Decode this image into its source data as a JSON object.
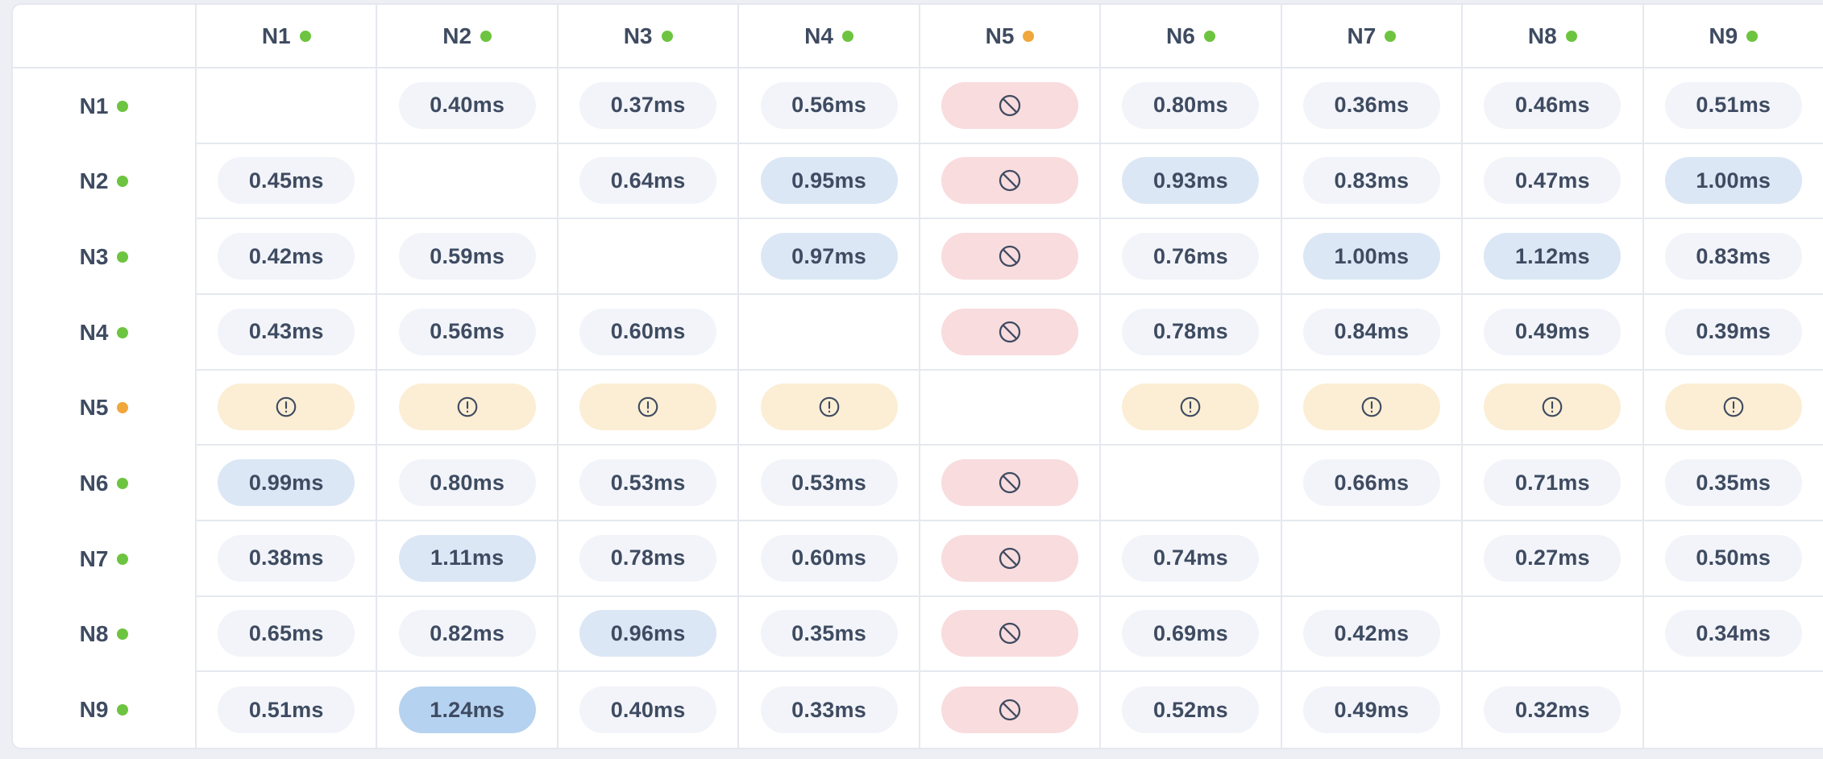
{
  "colors": {
    "page_background": "#edeff4",
    "card_background": "#ffffff",
    "grid_border": "#e5e8ef",
    "text": "#3e4b61",
    "pill_neutral": "#f2f4f9",
    "pill_elevated": "#dbe7f5",
    "pill_peak": "#b5d2f0",
    "pill_blocked": "#f9dcde",
    "pill_warning": "#fbeed4",
    "status_online": "#6dc440",
    "status_degraded": "#f0a73c"
  },
  "icons": {
    "blocked": "ban-icon",
    "warning": "alert-circle-icon",
    "node_status": "status-dot"
  },
  "matrix": {
    "unit": "ms",
    "columns": [
      {
        "label": "N1",
        "status": "online"
      },
      {
        "label": "N2",
        "status": "online"
      },
      {
        "label": "N3",
        "status": "online"
      },
      {
        "label": "N4",
        "status": "online"
      },
      {
        "label": "N5",
        "status": "degraded"
      },
      {
        "label": "N6",
        "status": "online"
      },
      {
        "label": "N7",
        "status": "online"
      },
      {
        "label": "N8",
        "status": "online"
      },
      {
        "label": "N9",
        "status": "online"
      }
    ],
    "rows": [
      {
        "label": "N1",
        "status": "online",
        "cells": [
          {
            "type": "self"
          },
          {
            "type": "value",
            "text": "0.40ms",
            "value": 0.4,
            "level": "normal"
          },
          {
            "type": "value",
            "text": "0.37ms",
            "value": 0.37,
            "level": "normal"
          },
          {
            "type": "value",
            "text": "0.56ms",
            "value": 0.56,
            "level": "normal"
          },
          {
            "type": "blocked"
          },
          {
            "type": "value",
            "text": "0.80ms",
            "value": 0.8,
            "level": "normal"
          },
          {
            "type": "value",
            "text": "0.36ms",
            "value": 0.36,
            "level": "normal"
          },
          {
            "type": "value",
            "text": "0.46ms",
            "value": 0.46,
            "level": "normal"
          },
          {
            "type": "value",
            "text": "0.51ms",
            "value": 0.51,
            "level": "normal"
          }
        ]
      },
      {
        "label": "N2",
        "status": "online",
        "cells": [
          {
            "type": "value",
            "text": "0.45ms",
            "value": 0.45,
            "level": "normal"
          },
          {
            "type": "self"
          },
          {
            "type": "value",
            "text": "0.64ms",
            "value": 0.64,
            "level": "normal"
          },
          {
            "type": "value",
            "text": "0.95ms",
            "value": 0.95,
            "level": "high"
          },
          {
            "type": "blocked"
          },
          {
            "type": "value",
            "text": "0.93ms",
            "value": 0.93,
            "level": "high"
          },
          {
            "type": "value",
            "text": "0.83ms",
            "value": 0.83,
            "level": "normal"
          },
          {
            "type": "value",
            "text": "0.47ms",
            "value": 0.47,
            "level": "normal"
          },
          {
            "type": "value",
            "text": "1.00ms",
            "value": 1.0,
            "level": "high"
          }
        ]
      },
      {
        "label": "N3",
        "status": "online",
        "cells": [
          {
            "type": "value",
            "text": "0.42ms",
            "value": 0.42,
            "level": "normal"
          },
          {
            "type": "value",
            "text": "0.59ms",
            "value": 0.59,
            "level": "normal"
          },
          {
            "type": "self"
          },
          {
            "type": "value",
            "text": "0.97ms",
            "value": 0.97,
            "level": "high"
          },
          {
            "type": "blocked"
          },
          {
            "type": "value",
            "text": "0.76ms",
            "value": 0.76,
            "level": "normal"
          },
          {
            "type": "value",
            "text": "1.00ms",
            "value": 1.0,
            "level": "high"
          },
          {
            "type": "value",
            "text": "1.12ms",
            "value": 1.12,
            "level": "high"
          },
          {
            "type": "value",
            "text": "0.83ms",
            "value": 0.83,
            "level": "normal"
          }
        ]
      },
      {
        "label": "N4",
        "status": "online",
        "cells": [
          {
            "type": "value",
            "text": "0.43ms",
            "value": 0.43,
            "level": "normal"
          },
          {
            "type": "value",
            "text": "0.56ms",
            "value": 0.56,
            "level": "normal"
          },
          {
            "type": "value",
            "text": "0.60ms",
            "value": 0.6,
            "level": "normal"
          },
          {
            "type": "self"
          },
          {
            "type": "blocked"
          },
          {
            "type": "value",
            "text": "0.78ms",
            "value": 0.78,
            "level": "normal"
          },
          {
            "type": "value",
            "text": "0.84ms",
            "value": 0.84,
            "level": "normal"
          },
          {
            "type": "value",
            "text": "0.49ms",
            "value": 0.49,
            "level": "normal"
          },
          {
            "type": "value",
            "text": "0.39ms",
            "value": 0.39,
            "level": "normal"
          }
        ]
      },
      {
        "label": "N5",
        "status": "degraded",
        "cells": [
          {
            "type": "warning"
          },
          {
            "type": "warning"
          },
          {
            "type": "warning"
          },
          {
            "type": "warning"
          },
          {
            "type": "self"
          },
          {
            "type": "warning"
          },
          {
            "type": "warning"
          },
          {
            "type": "warning"
          },
          {
            "type": "warning"
          }
        ]
      },
      {
        "label": "N6",
        "status": "online",
        "cells": [
          {
            "type": "value",
            "text": "0.99ms",
            "value": 0.99,
            "level": "high"
          },
          {
            "type": "value",
            "text": "0.80ms",
            "value": 0.8,
            "level": "normal"
          },
          {
            "type": "value",
            "text": "0.53ms",
            "value": 0.53,
            "level": "normal"
          },
          {
            "type": "value",
            "text": "0.53ms",
            "value": 0.53,
            "level": "normal"
          },
          {
            "type": "blocked"
          },
          {
            "type": "self"
          },
          {
            "type": "value",
            "text": "0.66ms",
            "value": 0.66,
            "level": "normal"
          },
          {
            "type": "value",
            "text": "0.71ms",
            "value": 0.71,
            "level": "normal"
          },
          {
            "type": "value",
            "text": "0.35ms",
            "value": 0.35,
            "level": "normal"
          }
        ]
      },
      {
        "label": "N7",
        "status": "online",
        "cells": [
          {
            "type": "value",
            "text": "0.38ms",
            "value": 0.38,
            "level": "normal"
          },
          {
            "type": "value",
            "text": "1.11ms",
            "value": 1.11,
            "level": "high"
          },
          {
            "type": "value",
            "text": "0.78ms",
            "value": 0.78,
            "level": "normal"
          },
          {
            "type": "value",
            "text": "0.60ms",
            "value": 0.6,
            "level": "normal"
          },
          {
            "type": "blocked"
          },
          {
            "type": "value",
            "text": "0.74ms",
            "value": 0.74,
            "level": "normal"
          },
          {
            "type": "self"
          },
          {
            "type": "value",
            "text": "0.27ms",
            "value": 0.27,
            "level": "normal"
          },
          {
            "type": "value",
            "text": "0.50ms",
            "value": 0.5,
            "level": "normal"
          }
        ]
      },
      {
        "label": "N8",
        "status": "online",
        "cells": [
          {
            "type": "value",
            "text": "0.65ms",
            "value": 0.65,
            "level": "normal"
          },
          {
            "type": "value",
            "text": "0.82ms",
            "value": 0.82,
            "level": "normal"
          },
          {
            "type": "value",
            "text": "0.96ms",
            "value": 0.96,
            "level": "high"
          },
          {
            "type": "value",
            "text": "0.35ms",
            "value": 0.35,
            "level": "normal"
          },
          {
            "type": "blocked"
          },
          {
            "type": "value",
            "text": "0.69ms",
            "value": 0.69,
            "level": "normal"
          },
          {
            "type": "value",
            "text": "0.42ms",
            "value": 0.42,
            "level": "normal"
          },
          {
            "type": "self"
          },
          {
            "type": "value",
            "text": "0.34ms",
            "value": 0.34,
            "level": "normal"
          }
        ]
      },
      {
        "label": "N9",
        "status": "online",
        "cells": [
          {
            "type": "value",
            "text": "0.51ms",
            "value": 0.51,
            "level": "normal"
          },
          {
            "type": "value",
            "text": "1.24ms",
            "value": 1.24,
            "level": "max"
          },
          {
            "type": "value",
            "text": "0.40ms",
            "value": 0.4,
            "level": "normal"
          },
          {
            "type": "value",
            "text": "0.33ms",
            "value": 0.33,
            "level": "normal"
          },
          {
            "type": "blocked"
          },
          {
            "type": "value",
            "text": "0.52ms",
            "value": 0.52,
            "level": "normal"
          },
          {
            "type": "value",
            "text": "0.49ms",
            "value": 0.49,
            "level": "normal"
          },
          {
            "type": "value",
            "text": "0.32ms",
            "value": 0.32,
            "level": "normal"
          },
          {
            "type": "self"
          }
        ]
      }
    ]
  }
}
